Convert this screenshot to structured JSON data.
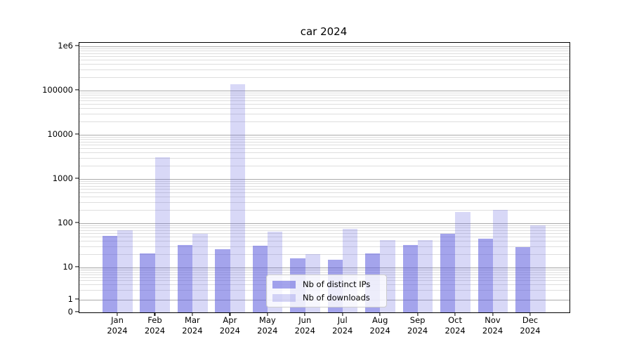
{
  "title": "car 2024",
  "legend": {
    "items": [
      {
        "label": "Nb of distinct IPs",
        "series": "ips"
      },
      {
        "label": "Nb of downloads",
        "series": "downloads"
      }
    ]
  },
  "y_axis": {
    "ticks": [
      {
        "label": "1e6",
        "value": 1000000
      },
      {
        "label": "100000",
        "value": 100000
      },
      {
        "label": "10000",
        "value": 10000
      },
      {
        "label": "1000",
        "value": 1000
      },
      {
        "label": "100",
        "value": 100
      },
      {
        "label": "10",
        "value": 10
      },
      {
        "label": "1",
        "value": 1
      },
      {
        "label": "0",
        "value": 0
      }
    ]
  },
  "x_axis": {
    "months": [
      "Jan",
      "Feb",
      "Mar",
      "Apr",
      "May",
      "Jun",
      "Jul",
      "Aug",
      "Sep",
      "Oct",
      "Nov",
      "Dec"
    ],
    "year": "2024"
  },
  "colors": {
    "bar_base": "#5a5adc",
    "ips_alpha": 0.55,
    "downloads_alpha": 0.24,
    "grid_major": "#ababab",
    "grid_minor": "#dedede"
  },
  "chart_data": {
    "type": "bar",
    "title": "car 2024",
    "categories": [
      "Jan 2024",
      "Feb 2024",
      "Mar 2024",
      "Apr 2024",
      "May 2024",
      "Jun 2024",
      "Jul 2024",
      "Aug 2024",
      "Sep 2024",
      "Oct 2024",
      "Nov 2024",
      "Dec 2024"
    ],
    "series": [
      {
        "name": "Nb of distinct IPs",
        "values": [
          52,
          21,
          32,
          26,
          31,
          16,
          15,
          21,
          32,
          58,
          45,
          29
        ]
      },
      {
        "name": "Nb of downloads",
        "values": [
          70,
          3100,
          58,
          140000,
          64,
          20,
          75,
          42,
          42,
          180,
          200,
          90
        ]
      }
    ],
    "xlabel": "",
    "ylabel": "",
    "yscale": "log (with 0 baseline)",
    "ylim": [
      0,
      1000000
    ],
    "grid": "horizontal, major + minor (log decades)",
    "legend_position": "lower center"
  }
}
